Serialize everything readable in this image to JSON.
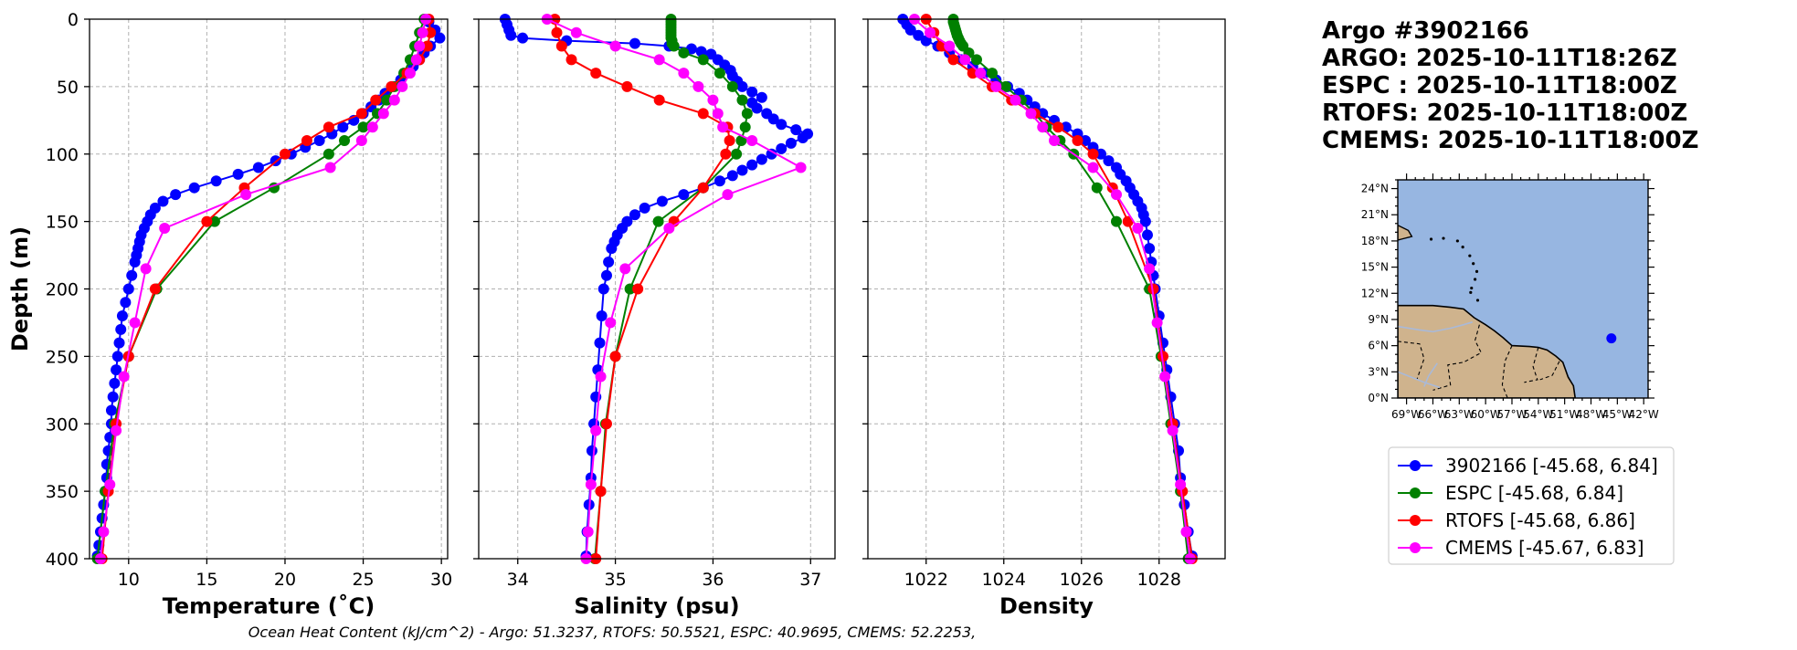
{
  "header": {
    "lines": [
      "Argo #3902166",
      "ARGO: 2025-10-11T18:26Z",
      "ESPC : 2025-10-11T18:00Z",
      "RTOFS: 2025-10-11T18:00Z",
      "CMEMS: 2025-10-11T18:00Z"
    ]
  },
  "footer": {
    "text": "Ocean Heat Content (kJ/cm^2) - Argo: 51.3237,  RTOFS: 50.5521,  ESPC: 40.9695,  CMEMS: 52.2253,"
  },
  "legend": {
    "entries": [
      {
        "label": "3902166 [-45.68, 6.84]",
        "color": "#0000ff"
      },
      {
        "label": "ESPC [-45.68, 6.84]",
        "color": "#008000"
      },
      {
        "label": "RTOFS [-45.68, 6.86]",
        "color": "#ff0000"
      },
      {
        "label": "CMEMS [-45.67, 6.83]",
        "color": "#ff00ff"
      }
    ]
  },
  "map": {
    "lat_labels": [
      "24°N",
      "21°N",
      "18°N",
      "15°N",
      "12°N",
      "9°N",
      "6°N",
      "3°N",
      "0°N"
    ],
    "lon_labels": [
      "69°W",
      "66°W",
      "63°W",
      "60°W",
      "57°W",
      "54°W",
      "51°W",
      "48°W",
      "45°W",
      "42°W"
    ],
    "lon_range": [
      -70,
      -41.5
    ],
    "lat_range": [
      0,
      25
    ],
    "float_position": [
      -45.68,
      6.84
    ],
    "ocean_color": "#97b6e1",
    "land_color": "#cfb38d",
    "marker_color": "#0000ff"
  },
  "chart_data": [
    {
      "type": "line",
      "name": "temperature",
      "xlabel": "Temperature (˚C)",
      "ylabel": "Depth (m)",
      "xlim": [
        7.5,
        30.4
      ],
      "ylim": [
        400,
        0
      ],
      "xticks": [
        10,
        15,
        20,
        25,
        30
      ],
      "yticks": [
        0,
        50,
        100,
        150,
        200,
        250,
        300,
        350,
        400
      ],
      "series": [
        {
          "name": "3902166",
          "color": "#0000ff",
          "y": [
            2,
            8,
            14,
            20,
            25,
            30,
            35,
            40,
            45,
            50,
            55,
            60,
            65,
            70,
            75,
            80,
            85,
            90,
            95,
            100,
            105,
            110,
            115,
            120,
            125,
            130,
            135,
            140,
            145,
            150,
            155,
            160,
            165,
            170,
            175,
            180,
            190,
            200,
            210,
            220,
            230,
            240,
            250,
            260,
            270,
            280,
            290,
            300,
            310,
            320,
            330,
            340,
            350,
            360,
            370,
            380,
            390,
            398
          ],
          "x": [
            29.2,
            29.6,
            29.9,
            29.3,
            28.9,
            28.6,
            28.2,
            27.8,
            27.4,
            26.9,
            26.4,
            26.0,
            25.5,
            25.0,
            24.4,
            23.7,
            23.0,
            22.2,
            21.3,
            20.4,
            19.4,
            18.3,
            17.0,
            15.6,
            14.2,
            13.0,
            12.2,
            11.7,
            11.4,
            11.2,
            11.0,
            10.8,
            10.7,
            10.6,
            10.5,
            10.4,
            10.2,
            10.0,
            9.8,
            9.6,
            9.5,
            9.4,
            9.3,
            9.2,
            9.1,
            9.0,
            8.9,
            8.9,
            8.8,
            8.7,
            8.6,
            8.6,
            8.5,
            8.4,
            8.3,
            8.2,
            8.1,
            8.0
          ]
        },
        {
          "name": "ESPC",
          "color": "#008000",
          "y": [
            0,
            10,
            20,
            30,
            40,
            50,
            60,
            70,
            80,
            90,
            100,
            125,
            150,
            200,
            250,
            300,
            350,
            400
          ],
          "x": [
            28.9,
            28.6,
            28.3,
            28.0,
            27.6,
            27.0,
            26.5,
            25.9,
            25.0,
            23.8,
            22.8,
            19.3,
            15.5,
            11.8,
            10.0,
            9.1,
            8.5,
            8.0
          ]
        },
        {
          "name": "RTOFS",
          "color": "#ff0000",
          "y": [
            0,
            10,
            20,
            30,
            40,
            50,
            60,
            70,
            80,
            90,
            100,
            125,
            150,
            200,
            250,
            300,
            350,
            400
          ],
          "x": [
            29.2,
            29.3,
            29.1,
            28.6,
            27.8,
            26.8,
            25.8,
            24.9,
            22.8,
            21.4,
            20.0,
            17.4,
            15.0,
            11.7,
            10.0,
            9.2,
            8.7,
            8.3
          ]
        },
        {
          "name": "CMEMS",
          "color": "#ff00ff",
          "y": [
            0,
            10,
            20,
            30,
            40,
            50,
            60,
            70,
            80,
            90,
            110,
            130,
            155,
            185,
            225,
            265,
            305,
            345,
            380,
            400
          ],
          "x": [
            29.0,
            28.8,
            28.6,
            28.4,
            28.0,
            27.5,
            27.0,
            26.3,
            25.6,
            24.9,
            22.9,
            17.5,
            12.3,
            11.1,
            10.4,
            9.7,
            9.2,
            8.8,
            8.4,
            8.2
          ]
        }
      ]
    },
    {
      "type": "line",
      "name": "salinity",
      "xlabel": "Salinity (psu)",
      "xlim": [
        33.6,
        37.25
      ],
      "ylim": [
        400,
        0
      ],
      "xticks": [
        34,
        35,
        36,
        37
      ],
      "yticks": [
        0,
        50,
        100,
        150,
        200,
        250,
        300,
        350,
        400
      ],
      "series": [
        {
          "name": "3902166",
          "color": "#0000ff",
          "y": [
            0,
            4,
            8,
            12,
            14,
            16,
            18,
            20,
            22,
            24,
            26,
            30,
            34,
            38,
            42,
            46,
            50,
            54,
            58,
            62,
            66,
            70,
            74,
            78,
            82,
            85,
            88,
            92,
            96,
            100,
            104,
            108,
            112,
            116,
            120,
            125,
            130,
            135,
            140,
            145,
            150,
            155,
            160,
            165,
            170,
            180,
            190,
            200,
            220,
            240,
            260,
            280,
            300,
            320,
            340,
            360,
            380,
            398
          ],
          "x": [
            33.87,
            33.89,
            33.91,
            33.93,
            34.05,
            34.5,
            35.2,
            35.55,
            35.78,
            35.88,
            35.98,
            36.05,
            36.12,
            36.18,
            36.2,
            36.25,
            36.3,
            36.4,
            36.5,
            36.4,
            36.45,
            36.55,
            36.62,
            36.7,
            36.85,
            36.97,
            36.92,
            36.8,
            36.7,
            36.6,
            36.5,
            36.4,
            36.3,
            36.2,
            36.07,
            35.9,
            35.7,
            35.48,
            35.3,
            35.2,
            35.12,
            35.07,
            35.02,
            34.99,
            34.96,
            34.93,
            34.91,
            34.88,
            34.86,
            34.84,
            34.82,
            34.8,
            34.78,
            34.76,
            34.75,
            34.73,
            34.71,
            34.7
          ]
        },
        {
          "name": "ESPC",
          "color": "#008000",
          "y": [
            0,
            2,
            4,
            6,
            8,
            10,
            12,
            14,
            16,
            18,
            20,
            25,
            30,
            40,
            50,
            60,
            70,
            80,
            90,
            100,
            125,
            150,
            200,
            250,
            300,
            350,
            400
          ],
          "x": [
            35.57,
            35.57,
            35.57,
            35.57,
            35.57,
            35.57,
            35.57,
            35.57,
            35.58,
            35.58,
            35.6,
            35.7,
            35.9,
            36.07,
            36.2,
            36.3,
            36.35,
            36.33,
            36.29,
            36.24,
            35.9,
            35.44,
            35.15,
            35.0,
            34.9,
            34.85,
            34.79
          ]
        },
        {
          "name": "RTOFS",
          "color": "#ff0000",
          "y": [
            0,
            10,
            20,
            30,
            40,
            50,
            60,
            70,
            80,
            90,
            100,
            125,
            150,
            200,
            250,
            300,
            350,
            400
          ],
          "x": [
            34.38,
            34.4,
            34.45,
            34.55,
            34.8,
            35.12,
            35.45,
            35.9,
            36.15,
            36.17,
            36.13,
            35.9,
            35.6,
            35.23,
            35.0,
            34.91,
            34.85,
            34.8
          ]
        },
        {
          "name": "CMEMS",
          "color": "#ff00ff",
          "y": [
            0,
            10,
            20,
            30,
            40,
            50,
            60,
            70,
            80,
            90,
            110,
            130,
            155,
            185,
            225,
            265,
            305,
            345,
            380,
            400
          ],
          "x": [
            34.3,
            34.6,
            35.0,
            35.45,
            35.7,
            35.85,
            36.0,
            36.05,
            36.1,
            36.4,
            36.9,
            36.15,
            35.55,
            35.1,
            34.95,
            34.85,
            34.8,
            34.75,
            34.72,
            34.7
          ]
        }
      ]
    },
    {
      "type": "line",
      "name": "density",
      "xlabel": "Density",
      "xlim": [
        1020.5,
        1029.7
      ],
      "ylim": [
        400,
        0
      ],
      "xticks": [
        1022,
        1024,
        1026,
        1028
      ],
      "yticks": [
        0,
        50,
        100,
        150,
        200,
        250,
        300,
        350,
        400
      ],
      "series": [
        {
          "name": "3902166",
          "color": "#0000ff",
          "y": [
            0,
            4,
            8,
            12,
            16,
            20,
            25,
            30,
            35,
            40,
            45,
            50,
            55,
            60,
            65,
            70,
            75,
            80,
            85,
            90,
            95,
            100,
            105,
            110,
            115,
            120,
            125,
            130,
            135,
            140,
            145,
            150,
            160,
            170,
            180,
            190,
            200,
            220,
            240,
            260,
            280,
            300,
            320,
            340,
            360,
            380,
            398
          ],
          "x": [
            1021.4,
            1021.5,
            1021.6,
            1021.8,
            1022.0,
            1022.3,
            1022.6,
            1022.9,
            1023.2,
            1023.5,
            1023.8,
            1024.1,
            1024.4,
            1024.6,
            1024.8,
            1025.0,
            1025.3,
            1025.6,
            1025.9,
            1026.1,
            1026.3,
            1026.5,
            1026.7,
            1026.9,
            1027.0,
            1027.15,
            1027.25,
            1027.35,
            1027.45,
            1027.55,
            1027.6,
            1027.65,
            1027.7,
            1027.75,
            1027.8,
            1027.85,
            1027.9,
            1028.0,
            1028.1,
            1028.2,
            1028.3,
            1028.4,
            1028.5,
            1028.55,
            1028.65,
            1028.75,
            1028.85
          ]
        },
        {
          "name": "ESPC",
          "color": "#008000",
          "y": [
            0,
            2,
            4,
            6,
            8,
            10,
            12,
            14,
            16,
            18,
            20,
            25,
            30,
            40,
            50,
            60,
            70,
            80,
            90,
            100,
            125,
            150,
            200,
            250,
            300,
            350,
            400
          ],
          "x": [
            1022.7,
            1022.7,
            1022.72,
            1022.74,
            1022.76,
            1022.78,
            1022.8,
            1022.83,
            1022.86,
            1022.9,
            1022.95,
            1023.1,
            1023.3,
            1023.7,
            1024.05,
            1024.45,
            1024.8,
            1025.1,
            1025.45,
            1025.8,
            1026.4,
            1026.9,
            1027.75,
            1028.05,
            1028.3,
            1028.55,
            1028.75
          ]
        },
        {
          "name": "RTOFS",
          "color": "#ff0000",
          "y": [
            0,
            10,
            20,
            30,
            40,
            50,
            60,
            70,
            80,
            90,
            100,
            125,
            150,
            200,
            250,
            300,
            350,
            400
          ],
          "x": [
            1022.0,
            1022.2,
            1022.4,
            1022.7,
            1023.2,
            1023.7,
            1024.2,
            1024.8,
            1025.4,
            1025.9,
            1026.3,
            1026.8,
            1027.2,
            1027.85,
            1028.1,
            1028.35,
            1028.6,
            1028.85
          ]
        },
        {
          "name": "CMEMS",
          "color": "#ff00ff",
          "y": [
            0,
            10,
            20,
            30,
            40,
            50,
            60,
            70,
            80,
            90,
            110,
            130,
            155,
            185,
            225,
            265,
            305,
            345,
            380,
            400
          ],
          "x": [
            1021.7,
            1022.1,
            1022.6,
            1023.0,
            1023.4,
            1023.8,
            1024.3,
            1024.7,
            1025.0,
            1025.3,
            1026.3,
            1026.9,
            1027.45,
            1027.75,
            1027.95,
            1028.15,
            1028.35,
            1028.55,
            1028.7,
            1028.8
          ]
        }
      ]
    }
  ]
}
